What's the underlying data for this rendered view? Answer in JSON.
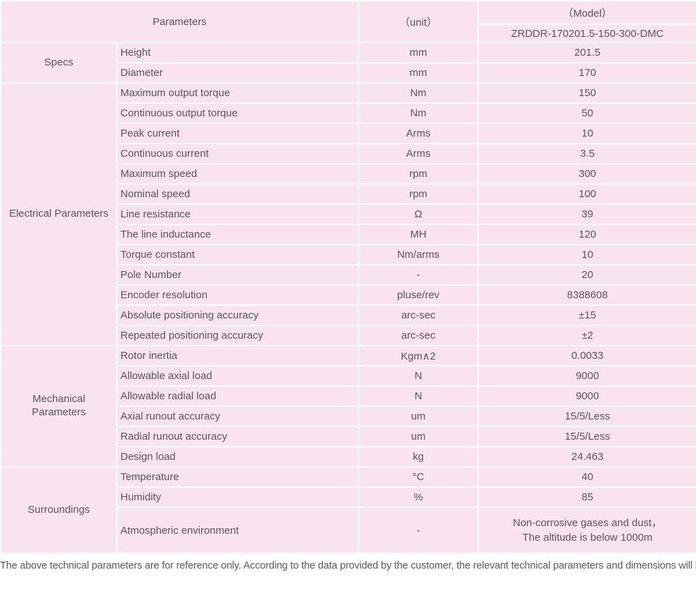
{
  "colors": {
    "header_bg": "#c4a3cb",
    "row_bg": "#f9e3ee",
    "grid_line": "#ffffff",
    "text": "#595757"
  },
  "header": {
    "parameters_label": "Parameters",
    "unit_label": "（unit）",
    "model_label": "（Model）",
    "model_number": "ZRDDR-170201.5-150-300-DMC"
  },
  "sections": [
    {
      "category": "Specs",
      "rows": [
        {
          "name": "Height",
          "unit": "mm",
          "value": "201.5"
        },
        {
          "name": "Diameter",
          "unit": "mm",
          "value": "170"
        }
      ]
    },
    {
      "category": "Electrical Parameters",
      "rows": [
        {
          "name": "Maximum output torque",
          "unit": "Nm",
          "value": "150"
        },
        {
          "name": "Continuous output torque",
          "unit": "Nm",
          "value": "50"
        },
        {
          "name": "Peak current",
          "unit": "Arms",
          "value": "10"
        },
        {
          "name": "Continuous current",
          "unit": "Arms",
          "value": "3.5"
        },
        {
          "name": "Maximum speed",
          "unit": "rpm",
          "value": "300"
        },
        {
          "name": "Nominal speed",
          "unit": "rpm",
          "value": "100"
        },
        {
          "name": "Line resistance",
          "unit": "Ω",
          "value": "39"
        },
        {
          "name": "The line inductance",
          "unit": "MH",
          "value": "120"
        },
        {
          "name": "Torque constant",
          "unit": "Nm/arms",
          "value": "10"
        },
        {
          "name": "Pole Number",
          "unit": "-",
          "value": "20"
        },
        {
          "name": "Encoder resolution",
          "unit": "pluse/rev",
          "value": "8388608"
        },
        {
          "name": "Absolute positioning accuracy",
          "unit": "arc-sec",
          "value": "±15"
        },
        {
          "name": "Repeated positioning accuracy",
          "unit": "arc-sec",
          "value": "±2"
        }
      ]
    },
    {
      "category": "Mechanical Parameters",
      "rows": [
        {
          "name": "Rotor inertia",
          "unit": "Kgm∧2",
          "value": "0.0033"
        },
        {
          "name": "Allowable axial load",
          "unit": "N",
          "value": "9000"
        },
        {
          "name": "Allowable radial load",
          "unit": "N",
          "value": "9000"
        },
        {
          "name": "Axial runout accuracy",
          "unit": "um",
          "value": "15/5/Less"
        },
        {
          "name": "Radial runout accuracy",
          "unit": "um",
          "value": "15/5/Less"
        },
        {
          "name": "Design load",
          "unit": "kg",
          "value": "24.463"
        }
      ]
    },
    {
      "category": "Surroundings",
      "rows": [
        {
          "name": "Temperature",
          "unit": "°C",
          "value": "40"
        },
        {
          "name": "Humidity",
          "unit": "%",
          "value": "85"
        },
        {
          "name": "Atmospheric environment",
          "unit": "-",
          "value": "Non-corrosive gases and dust，\nThe altitude is below 1000m"
        }
      ]
    }
  ],
  "footer_note": "The above technical parameters are for reference only. According to the data provided by the customer, the relevant technical parameters and dimensions will be issued."
}
